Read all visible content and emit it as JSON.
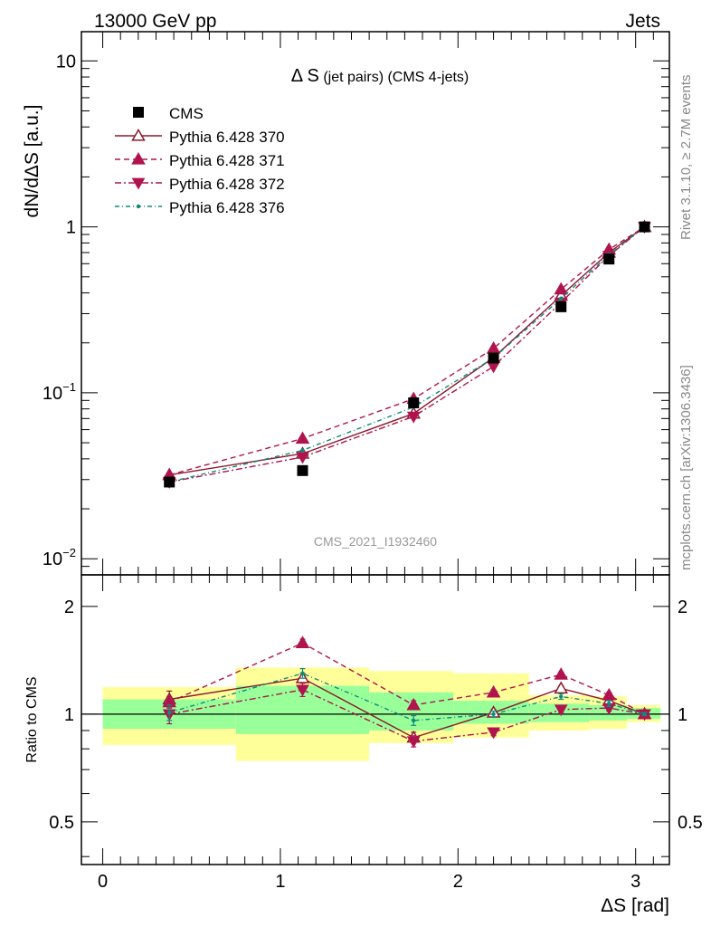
{
  "header": {
    "left_label": "13000 GeV pp",
    "right_label": "Jets"
  },
  "side_labels": {
    "rivet": "Rivet 3.1.10, ≥ 2.7M events",
    "mcplots": "mcplots.cern.ch [arXiv:1306.3436]"
  },
  "chart_data": {
    "type": "line",
    "title_main": "Δ S",
    "title_sub": " (jet pairs) (CMS 4-jets)",
    "watermark": "CMS_2021_I1932460",
    "xlabel": "ΔS [rad]",
    "ylabel_main": "dN/dΔS [a.u.]",
    "ylabel_ratio": "Ratio to CMS",
    "xlim": [
      -0.12,
      3.19
    ],
    "xticks": [
      "0",
      "1",
      "2",
      "3"
    ],
    "main_ylim": [
      0.008,
      15
    ],
    "main_yscale": "log",
    "main_yticks": [
      {
        "value": 10,
        "base": "10",
        "exp": ""
      },
      {
        "value": 1,
        "base": "1",
        "exp": ""
      },
      {
        "value": 0.1,
        "base": "10",
        "exp": "−1"
      },
      {
        "value": 0.01,
        "base": "10",
        "exp": "−2"
      }
    ],
    "ratio_ylim": [
      0.38,
      2.45
    ],
    "ratio_yscale": "log",
    "ratio_yticks": [
      "2",
      "1",
      "0.5"
    ],
    "x": [
      0.375,
      1.125,
      1.75,
      2.2,
      2.58,
      2.85,
      3.05
    ],
    "bins": [
      [
        0,
        0.75
      ],
      [
        0.75,
        1.5
      ],
      [
        1.5,
        1.975
      ],
      [
        1.975,
        2.4
      ],
      [
        2.4,
        2.74
      ],
      [
        2.74,
        2.95
      ],
      [
        2.95,
        3.14
      ]
    ],
    "data": {
      "name": "CMS",
      "values": [
        0.029,
        0.034,
        0.087,
        0.162,
        0.33,
        0.64,
        1.0
      ],
      "band_inner": [
        [
          0.91,
          1.1
        ],
        [
          0.88,
          1.2
        ],
        [
          0.9,
          1.15
        ],
        [
          0.94,
          1.09
        ],
        [
          0.95,
          1.07
        ],
        [
          0.96,
          1.06
        ],
        [
          0.97,
          1.04
        ]
      ],
      "band_outer": [
        [
          0.82,
          1.19
        ],
        [
          0.74,
          1.35
        ],
        [
          0.83,
          1.32
        ],
        [
          0.86,
          1.3
        ],
        [
          0.9,
          1.13
        ],
        [
          0.91,
          1.12
        ],
        [
          0.95,
          1.06
        ]
      ]
    },
    "series": [
      {
        "name": "Pythia 6.428 370",
        "color": "#8b1a2b",
        "dash": "",
        "marker": "triangle-up-open",
        "values": [
          0.032,
          0.043,
          0.075,
          0.163,
          0.385,
          0.7,
          1.0
        ],
        "ratio": [
          1.1,
          1.26,
          0.86,
          1.01,
          1.18,
          1.09,
          1.0
        ],
        "ratio_err": [
          0.06,
          0.04,
          0.03,
          0.02,
          0.02,
          0.02,
          0.01
        ]
      },
      {
        "name": "Pythia 6.428 371",
        "color": "#b0144e",
        "dash": "6,4",
        "marker": "triangle-up",
        "values": [
          0.032,
          0.053,
          0.092,
          0.185,
          0.42,
          0.73,
          1.0
        ],
        "ratio": [
          1.08,
          1.58,
          1.06,
          1.15,
          1.29,
          1.13,
          1.0
        ],
        "ratio_err": [
          0.04,
          0.04,
          0.03,
          0.02,
          0.02,
          0.02,
          0.01
        ]
      },
      {
        "name": "Pythia 6.428 372",
        "color": "#b0144e",
        "dash": "7,3,2,3",
        "marker": "triangle-down",
        "values": [
          0.029,
          0.041,
          0.072,
          0.144,
          0.35,
          0.67,
          1.0
        ],
        "ratio": [
          1.0,
          1.17,
          0.84,
          0.89,
          1.03,
          1.04,
          1.0
        ],
        "ratio_err": [
          0.06,
          0.05,
          0.03,
          0.02,
          0.02,
          0.02,
          0.01
        ]
      },
      {
        "name": "Pythia 6.428 376",
        "color": "#0e8a7a",
        "dash": "5,3,1,3",
        "marker": "dot",
        "values": [
          0.029,
          0.045,
          0.082,
          0.162,
          0.37,
          0.68,
          1.0
        ],
        "ratio": [
          1.01,
          1.3,
          0.96,
          1.0,
          1.12,
          1.07,
          1.0
        ],
        "ratio_err": [
          0.05,
          0.04,
          0.03,
          0.02,
          0.02,
          0.02,
          0.01
        ]
      }
    ]
  }
}
